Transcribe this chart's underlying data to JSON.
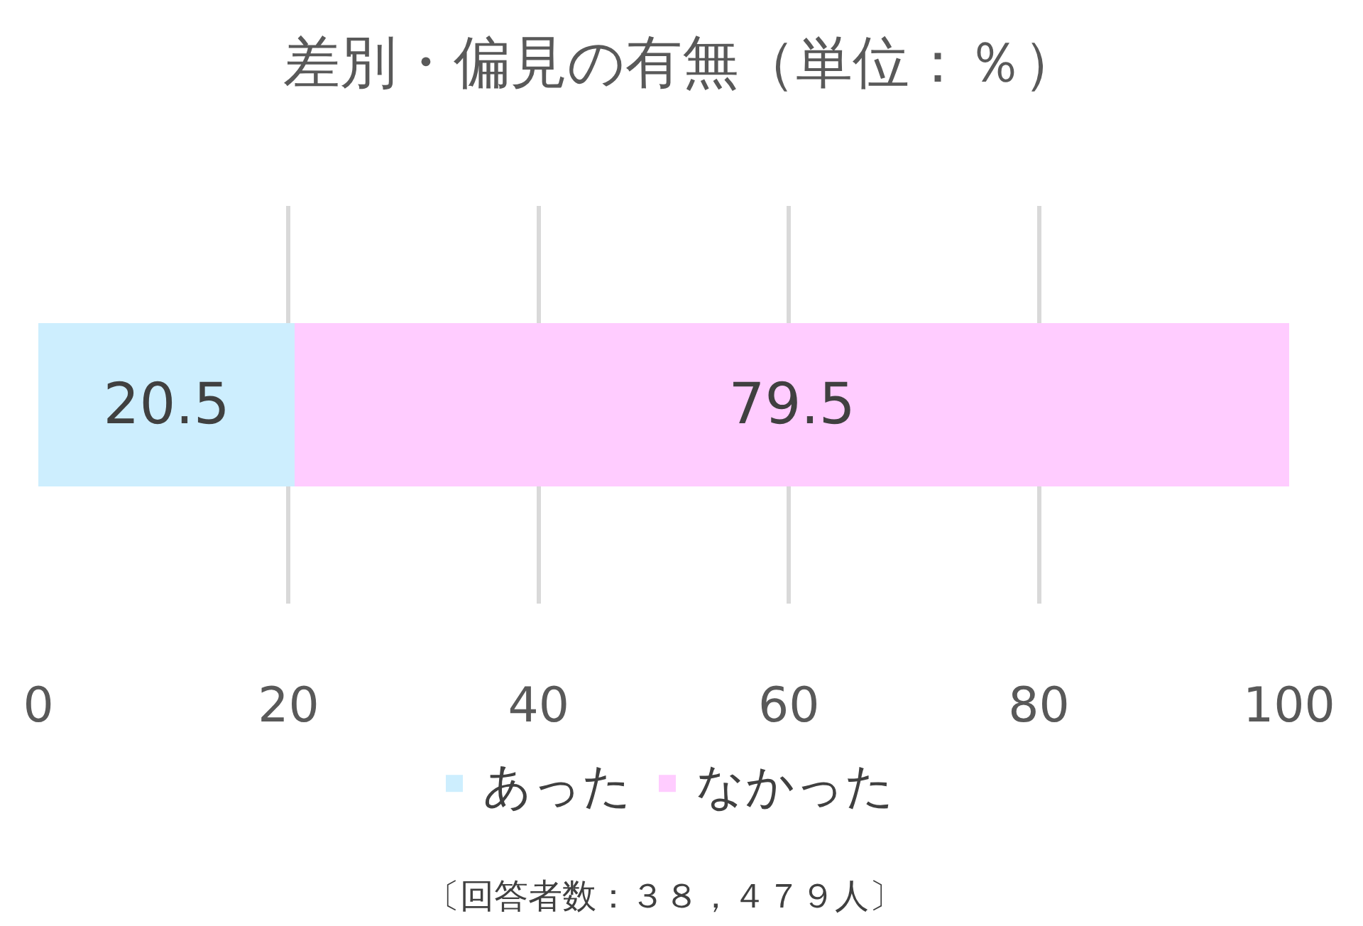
{
  "chart_data": {
    "type": "bar",
    "title": "差別・偏見の有無（単位：％）",
    "orientation": "horizontal",
    "stacked": true,
    "categories": [
      null
    ],
    "series": [
      {
        "name": "あった",
        "color": "#cdeefe",
        "values": [
          20.5
        ]
      },
      {
        "name": "なかった",
        "color": "#ffccff",
        "values": [
          79.5
        ]
      }
    ],
    "xlim": [
      0,
      100
    ],
    "xticks": [
      0,
      20,
      40,
      60,
      80,
      100
    ],
    "grid": "x",
    "legend": "bottom",
    "data_labels": true,
    "annotations": [
      "〔回答者数：３８，４７９人〕"
    ]
  }
}
